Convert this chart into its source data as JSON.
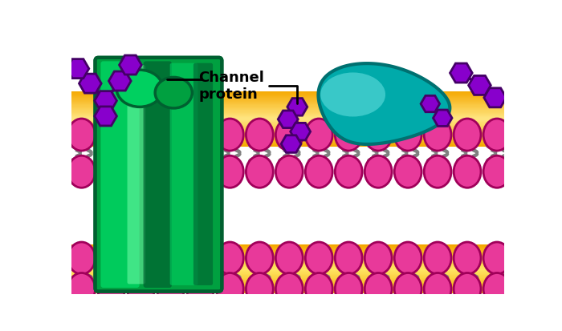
{
  "fig_width": 7.0,
  "fig_height": 4.14,
  "dpi": 100,
  "bg_color": "#ffffff",
  "phospholipid_head_color": "#E8399A",
  "phospholipid_head_outline": "#A0005A",
  "phospholipid_tail_color": "#808080",
  "channel_protein_color": "#00A040",
  "channel_protein_highlight": "#00D060",
  "channel_protein_dark": "#006030",
  "teal_protein_color": "#00AAAA",
  "teal_protein_highlight": "#60DDDD",
  "teal_protein_dark": "#007070",
  "hexagon_color": "#8800CC",
  "hexagon_outline": "#440066",
  "orange_band": "#F5A800",
  "orange_light": "#FFE090"
}
